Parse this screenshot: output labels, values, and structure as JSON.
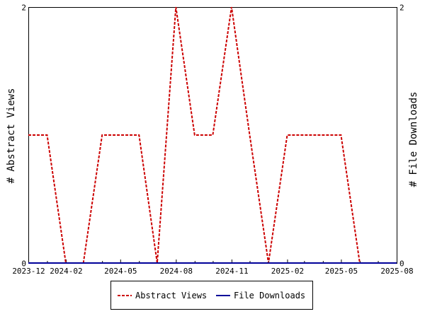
{
  "chart_data": {
    "type": "line",
    "title": "",
    "xlabel": "",
    "ylabel_left": "# Abstract Views",
    "ylabel_right": "# File Downloads",
    "x_ticks": [
      "2023-12",
      "2024-02",
      "2024-05",
      "2024-08",
      "2024-11",
      "2025-02",
      "2025-05",
      "2025-08"
    ],
    "x_range": [
      "2023-12-01",
      "2025-08-01"
    ],
    "ylim_left": [
      0,
      2
    ],
    "ylim_right": [
      0,
      2
    ],
    "y_ticks_left": [
      "0",
      "2"
    ],
    "y_ticks_right": [
      "0",
      "2"
    ],
    "grid": false,
    "legend_position": "bottom-center",
    "series": [
      {
        "name": "Abstract Views",
        "axis": "left",
        "color": "#cc0000",
        "dash": "dashed",
        "x": [
          "2023-12-01",
          "2024-01-01",
          "2024-02-01",
          "2024-03-01",
          "2024-04-01",
          "2024-05-01",
          "2024-06-01",
          "2024-07-01",
          "2024-08-01",
          "2024-09-01",
          "2024-10-01",
          "2024-11-01",
          "2024-12-01",
          "2025-01-01",
          "2025-02-01",
          "2025-03-01",
          "2025-04-01",
          "2025-05-01",
          "2025-06-01",
          "2025-07-01",
          "2025-08-01"
        ],
        "y": [
          1,
          1,
          0,
          0,
          1,
          1,
          1,
          0,
          2,
          1,
          1,
          2,
          1,
          0,
          1,
          1,
          1,
          1,
          0,
          0,
          0
        ]
      },
      {
        "name": "File Downloads",
        "axis": "right",
        "color": "#000099",
        "dash": "solid",
        "x": [
          "2023-12-01",
          "2025-08-01"
        ],
        "y": [
          0,
          0
        ]
      }
    ]
  }
}
